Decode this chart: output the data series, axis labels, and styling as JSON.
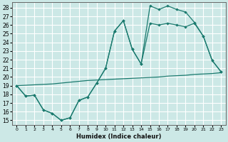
{
  "bg_color": "#cce8e6",
  "grid_color": "#ffffff",
  "line_color": "#1a7a6e",
  "xlabel": "Humidex (Indice chaleur)",
  "xlim": [
    -0.5,
    23.5
  ],
  "ylim": [
    14.5,
    28.6
  ],
  "xticks": [
    0,
    1,
    2,
    3,
    4,
    5,
    6,
    7,
    8,
    9,
    10,
    11,
    12,
    13,
    14,
    15,
    16,
    17,
    18,
    19,
    20,
    21,
    22,
    23
  ],
  "yticks": [
    15,
    16,
    17,
    18,
    19,
    20,
    21,
    22,
    23,
    24,
    25,
    26,
    27,
    28
  ],
  "line1_x": [
    0,
    1,
    2,
    3,
    4,
    5,
    6,
    7,
    8,
    9,
    10,
    11,
    12,
    13,
    14,
    15,
    16,
    17,
    18,
    19,
    20,
    21,
    22,
    23
  ],
  "line1_y": [
    19.0,
    17.8,
    17.9,
    16.2,
    15.8,
    15.0,
    15.3,
    17.3,
    17.7,
    19.3,
    21.0,
    25.3,
    26.5,
    23.2,
    21.5,
    28.2,
    27.8,
    28.2,
    27.8,
    27.5,
    26.3,
    24.7,
    21.9,
    20.6
  ],
  "line2_x": [
    0,
    1,
    2,
    3,
    4,
    5,
    6,
    7,
    8,
    9,
    10,
    11,
    12,
    13,
    14,
    15,
    16,
    17,
    18,
    19,
    20,
    21,
    22,
    23
  ],
  "line2_y": [
    19.0,
    19.05,
    19.1,
    19.15,
    19.2,
    19.3,
    19.4,
    19.5,
    19.6,
    19.65,
    19.7,
    19.75,
    19.8,
    19.85,
    19.9,
    19.95,
    20.0,
    20.1,
    20.15,
    20.2,
    20.3,
    20.35,
    20.4,
    20.5
  ],
  "line3_x": [
    0,
    1,
    2,
    3,
    4,
    5,
    6,
    7,
    8,
    9,
    10,
    11,
    12,
    13,
    14,
    15,
    16,
    17,
    18,
    19,
    20,
    21,
    22,
    23
  ],
  "line3_y": [
    19.0,
    17.8,
    17.9,
    16.2,
    15.8,
    15.0,
    15.3,
    17.3,
    17.7,
    19.3,
    21.0,
    25.3,
    26.5,
    23.2,
    21.5,
    26.2,
    26.0,
    26.2,
    26.0,
    25.8,
    26.2,
    24.7,
    21.9,
    20.6
  ]
}
